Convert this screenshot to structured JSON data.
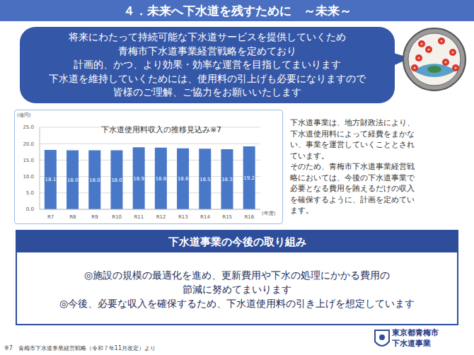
{
  "header": {
    "title": "４．未来へ下水道を残すために　～未来～"
  },
  "message": {
    "lines": [
      "将来にわたって持続可能な下水道サービスを提供していくため",
      "青梅市下水道事業経営戦略を定めており",
      "計画的、かつ、より効果・効率な運営を目指してまいります",
      "下水道を維持していくためには、使用料の引上げも必要になりますので",
      "皆様のご理解、ご協力をお願いいたします"
    ]
  },
  "chart_data": {
    "type": "bar",
    "title": "下水道使用料収入の推移見込み※7",
    "x_label": "(年度)",
    "y_label": "(億円)",
    "categories": [
      "R7",
      "R8",
      "R9",
      "R10",
      "R11",
      "R12",
      "R13",
      "R14",
      "R15",
      "R16"
    ],
    "values": [
      18.1,
      18.0,
      18.0,
      18.0,
      18.9,
      18.8,
      18.6,
      18.5,
      18.3,
      19.2
    ],
    "value_labels": [
      "18.1",
      "18.0",
      "18.0",
      "18.0",
      "18.9",
      "18.8",
      "18.6",
      "18.5",
      "18.3",
      "19.2"
    ],
    "color": "#4a78c8",
    "ylim": [
      0,
      25
    ],
    "yticks": [
      {
        "value": 0,
        "label": "0.0"
      },
      {
        "value": 5,
        "label": "5.0"
      },
      {
        "value": 10,
        "label": "10.0"
      },
      {
        "value": 15,
        "label": "15.0"
      },
      {
        "value": 20,
        "label": "20.0"
      },
      {
        "value": 25,
        "label": "25.0"
      }
    ],
    "grid": true,
    "data_labels": true
  },
  "explanation": {
    "lines": [
      "下水道事業は、地方財政法により、",
      "下水道使用料によって経費をまかな",
      "い、事業を運営していくこととされ",
      "ています。",
      "そのため、青梅市下水道事業経営戦",
      "略においては、今後の下水道事業で",
      "必要となる費用を賄えるだけの収入",
      "を確保するように、計画を定めてい",
      "ます。"
    ]
  },
  "initiatives": {
    "title": "下水道事業の今後の取り組み",
    "lines": [
      "◎施設の規模の最適化を進め、更新費用や下水の処理にかかる費用の",
      "節減に努めてまいります",
      "◎今後、必要な収入を確保するため、下水道使用料の引き上げを想定しています"
    ]
  },
  "logo": {
    "lines": [
      "東京都青梅市",
      "下水道事業"
    ]
  },
  "footnote": "※7　青梅市下水道事業経営戦略（令和７年11月改定）より"
}
